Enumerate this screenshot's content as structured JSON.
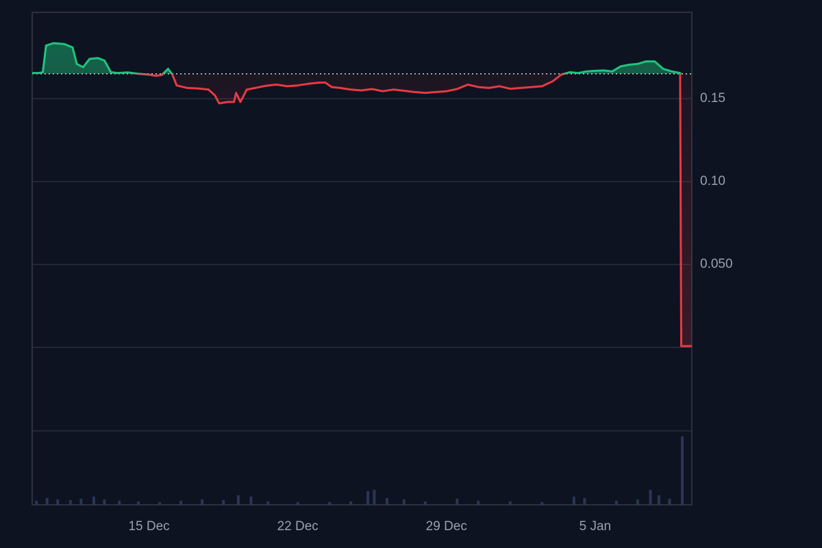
{
  "chart_data": {
    "type": "baseline-line",
    "x": [
      9.5,
      9.8,
      10.0,
      10.15,
      10.5,
      11.0,
      11.4,
      11.6,
      11.9,
      12.2,
      12.6,
      12.9,
      13.2,
      13.5,
      14.0,
      14.5,
      15.0,
      15.3,
      15.6,
      15.9,
      16.1,
      16.3,
      16.8,
      17.3,
      17.8,
      18.1,
      18.3,
      18.7,
      19.0,
      19.1,
      19.3,
      19.6,
      20.0,
      20.5,
      21.0,
      21.5,
      22.0,
      22.5,
      23.0,
      23.3,
      23.6,
      24.0,
      24.5,
      25.0,
      25.5,
      26.0,
      26.5,
      27.0,
      27.5,
      28.0,
      28.5,
      29.0,
      29.5,
      30.0,
      30.5,
      31.0,
      31.5,
      32.0,
      32.5,
      33.0,
      33.5,
      34.0,
      34.4,
      34.8,
      35.2,
      35.6,
      36.0,
      36.4,
      36.8,
      37.2,
      37.6,
      38.0,
      38.4,
      38.8,
      39.2,
      39.6,
      40.0,
      40.05,
      40.2,
      40.55
    ],
    "values": [
      0.1655,
      0.1655,
      0.166,
      0.182,
      0.1835,
      0.183,
      0.181,
      0.171,
      0.169,
      0.174,
      0.1745,
      0.173,
      0.166,
      0.1655,
      0.1658,
      0.165,
      0.1645,
      0.1638,
      0.1643,
      0.168,
      0.1645,
      0.158,
      0.1565,
      0.1562,
      0.1555,
      0.152,
      0.1472,
      0.148,
      0.148,
      0.1535,
      0.148,
      0.1555,
      0.1565,
      0.1578,
      0.1585,
      0.1575,
      0.158,
      0.159,
      0.1597,
      0.1597,
      0.157,
      0.1565,
      0.1555,
      0.155,
      0.1558,
      0.1545,
      0.1555,
      0.1548,
      0.154,
      0.1535,
      0.154,
      0.1545,
      0.1558,
      0.1585,
      0.157,
      0.1565,
      0.1575,
      0.156,
      0.1565,
      0.157,
      0.1575,
      0.1605,
      0.1645,
      0.166,
      0.1655,
      0.1665,
      0.1668,
      0.167,
      0.1665,
      0.1695,
      0.1705,
      0.171,
      0.1725,
      0.1725,
      0.168,
      0.1665,
      0.1655,
      0.0008,
      0.0008,
      0.0008
    ],
    "baseline": 0.165,
    "up_color": "#1fc47f",
    "down_color": "#ea3943",
    "xlim": [
      9.5,
      40.55
    ],
    "xticks": [
      {
        "value": 15,
        "label": "15 Dec"
      },
      {
        "value": 22,
        "label": "22 Dec"
      },
      {
        "value": 29,
        "label": "29 Dec"
      },
      {
        "value": 36,
        "label": "5 Jan"
      }
    ],
    "ylim": [
      -0.095,
      0.2021
    ],
    "yticks": [
      0.15,
      {
        "value": 0.1,
        "label": "0.10"
      },
      {
        "value": 0.05,
        "label": "0.050"
      },
      {
        "value": 0,
        "label": null
      }
    ],
    "grid": true,
    "volume": {
      "color": "#2c3556",
      "x": [
        9.7,
        10.2,
        10.7,
        11.3,
        11.8,
        12.4,
        12.9,
        13.6,
        14.5,
        15.5,
        16.5,
        17.5,
        18.5,
        19.2,
        19.8,
        20.6,
        22,
        23.5,
        24.5,
        25.3,
        25.6,
        26.2,
        27,
        28,
        29.5,
        30.5,
        32,
        33.5,
        35,
        35.5,
        37,
        38,
        38.6,
        39.0,
        39.5,
        40.1
      ],
      "values": [
        6,
        10,
        8,
        7,
        9,
        12,
        8,
        6,
        5,
        4,
        6,
        8,
        7,
        14,
        12,
        5,
        4,
        4,
        5,
        20,
        22,
        10,
        8,
        5,
        9,
        6,
        5,
        4,
        12,
        10,
        6,
        8,
        22,
        14,
        9,
        100
      ],
      "y2lim": [
        0,
        108
      ]
    }
  }
}
